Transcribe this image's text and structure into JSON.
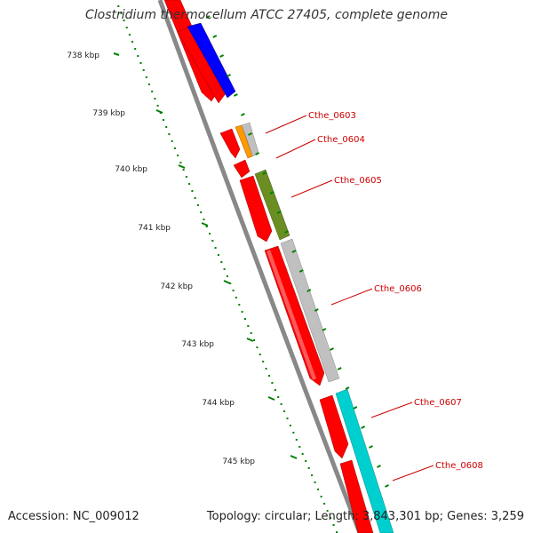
{
  "title": "Clostridium thermocellum ATCC 27405, complete genome",
  "footer": {
    "accession": "Accession: NC_009012",
    "summary": "Topology: circular; Length: 3,843,301 bp; Genes: 3,259"
  },
  "scale_unit": "kbp",
  "scale_ticks": [
    {
      "kbp": 738,
      "label": "738 kbp"
    },
    {
      "kbp": 739,
      "label": "739 kbp"
    },
    {
      "kbp": 740,
      "label": "740 kbp"
    },
    {
      "kbp": 741,
      "label": "741 kbp"
    },
    {
      "kbp": 742,
      "label": "742 kbp"
    },
    {
      "kbp": 743,
      "label": "743 kbp"
    },
    {
      "kbp": 744,
      "label": "744 kbp"
    },
    {
      "kbp": 745,
      "label": "745 kbp"
    }
  ],
  "gene_labels": [
    {
      "name": "Cthe_0603"
    },
    {
      "name": "Cthe_0604"
    },
    {
      "name": "Cthe_0605"
    },
    {
      "name": "Cthe_0606"
    },
    {
      "name": "Cthe_0607"
    },
    {
      "name": "Cthe_0608"
    }
  ],
  "colors": {
    "backbone": "#777777",
    "cds": "#ff0000",
    "gene_blue": "#0000ff",
    "gene_orange": "#ff9900",
    "gene_olive": "#6b8e23",
    "gene_gray": "#bdbdbd",
    "gene_cyan": "#00d2d2",
    "tick_green": "#008000",
    "label_red": "#cc0000"
  }
}
